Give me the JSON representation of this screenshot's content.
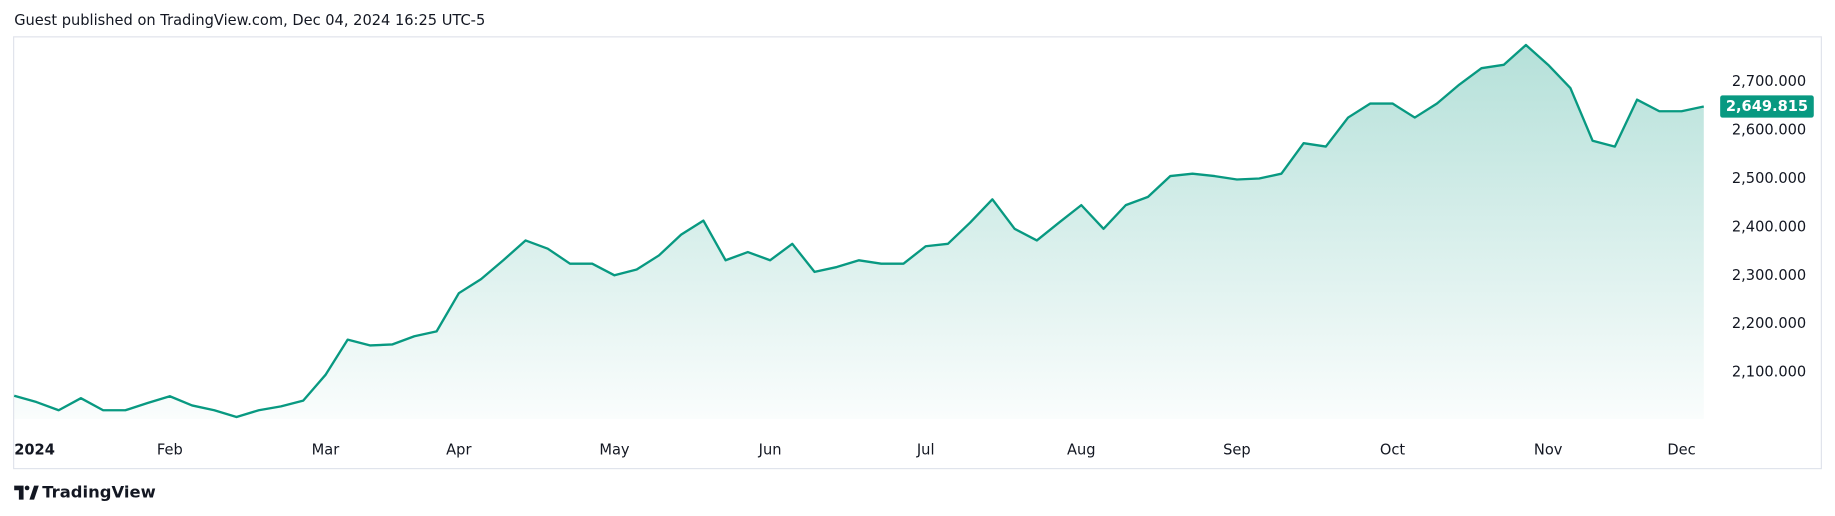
{
  "header": "Guest published on TradingView.com, Dec 04, 2024 16:25 UTC-5",
  "brand": "TradingView",
  "chart_data": {
    "type": "area",
    "categories": [
      "2024",
      null,
      null,
      null,
      null,
      null,
      null,
      "Feb",
      null,
      null,
      null,
      null,
      null,
      null,
      "Mar",
      null,
      null,
      null,
      null,
      null,
      "Apr",
      null,
      null,
      null,
      null,
      null,
      null,
      "May",
      null,
      null,
      null,
      null,
      null,
      null,
      "Jun",
      null,
      null,
      null,
      null,
      null,
      null,
      "Jul",
      null,
      null,
      null,
      null,
      null,
      null,
      "Aug",
      null,
      null,
      null,
      null,
      null,
      null,
      "Sep",
      null,
      null,
      null,
      null,
      null,
      null,
      "Oct",
      null,
      null,
      null,
      null,
      null,
      null,
      "Nov",
      null,
      null,
      null,
      null,
      null,
      "Dec",
      null
    ],
    "series": [
      {
        "color": "#089981",
        "values": [
          2052,
          2039,
          2022,
          2047,
          2022,
          2022,
          2037,
          2051,
          2032,
          2022,
          2008,
          2022,
          2030,
          2042,
          2095,
          2168,
          2156,
          2158,
          2175,
          2185,
          2264,
          2293,
          2332,
          2373,
          2356,
          2325,
          2325,
          2301,
          2313,
          2342,
          2385,
          2414,
          2332,
          2349,
          2332,
          2366,
          2308,
          2318,
          2332,
          2325,
          2325,
          2361,
          2366,
          2410,
          2458,
          2397,
          2373,
          2410,
          2446,
          2397,
          2446,
          2463,
          2506,
          2511,
          2506,
          2499,
          2501,
          2511,
          2574,
          2567,
          2627,
          2656,
          2656,
          2627,
          2656,
          2695,
          2729,
          2736,
          2777,
          2736,
          2688,
          2579,
          2567,
          2664,
          2640,
          2640,
          2649.815
        ]
      }
    ],
    "ylim": [
      1980,
      2795
    ],
    "yticks": [
      {
        "value": 2100,
        "label": "2,100.000"
      },
      {
        "value": 2200,
        "label": "2,200.000"
      },
      {
        "value": 2300,
        "label": "2,300.000"
      },
      {
        "value": 2400,
        "label": "2,400.000"
      },
      {
        "value": 2500,
        "label": "2,500.000"
      },
      {
        "value": 2600,
        "label": "2,600.000"
      },
      {
        "value": 2700,
        "label": "2,700.000"
      }
    ],
    "last_price": {
      "value": 2649.815,
      "label": "2,649.815"
    },
    "grid": false
  }
}
